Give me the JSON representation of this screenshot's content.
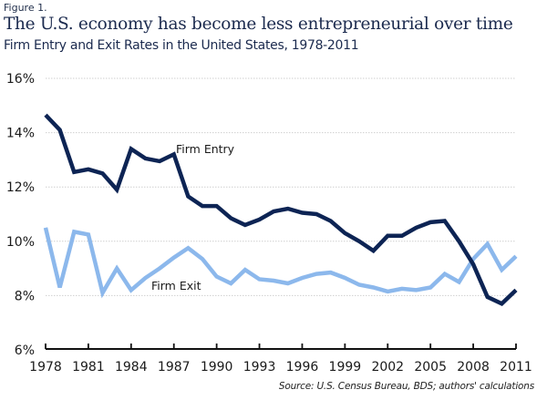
{
  "figure_label": "Figure 1.",
  "title": "The U.S. economy has become less entrepreneurial over time",
  "subtitle": "Firm Entry and Exit Rates in the United States, 1978-2011",
  "source": "Source: U.S. Census Bureau, BDS; authors' calculations",
  "chart_data": {
    "type": "line",
    "title": "The U.S. economy has become less entrepreneurial over time",
    "subtitle": "Firm Entry and Exit Rates in the United States, 1978-2011",
    "xlabel": "",
    "ylabel": "",
    "x": [
      1978,
      1979,
      1980,
      1981,
      1982,
      1983,
      1984,
      1985,
      1986,
      1987,
      1988,
      1989,
      1990,
      1991,
      1992,
      1993,
      1994,
      1995,
      1996,
      1997,
      1998,
      1999,
      2000,
      2001,
      2002,
      2003,
      2004,
      2005,
      2006,
      2007,
      2008,
      2009,
      2010,
      2011
    ],
    "xlim": [
      1978,
      2011
    ],
    "ylim": [
      6,
      16
    ],
    "x_ticks": [
      1978,
      1981,
      1984,
      1987,
      1990,
      1993,
      1996,
      1999,
      2002,
      2005,
      2008,
      2011
    ],
    "x_tick_labels": [
      "1978",
      "1981",
      "1984",
      "1987",
      "1990",
      "1993",
      "1996",
      "1999",
      "2002",
      "2005",
      "2008",
      "2011"
    ],
    "y_ticks": [
      6,
      8,
      10,
      12,
      14,
      16
    ],
    "y_tick_labels": [
      "6%",
      "8%",
      "10%",
      "12%",
      "14%",
      "16%"
    ],
    "grid": "horizontal dotted",
    "legend": "none (inline annotations)",
    "series": [
      {
        "name": "Firm Entry",
        "color": "#0d2454",
        "annotation": "Firm Entry",
        "values": [
          14.65,
          14.1,
          12.55,
          12.65,
          12.5,
          11.9,
          13.4,
          13.05,
          12.95,
          13.2,
          11.65,
          11.3,
          11.3,
          10.85,
          10.6,
          10.8,
          11.1,
          11.2,
          11.05,
          11.0,
          10.75,
          10.3,
          10.0,
          9.65,
          10.2,
          10.2,
          10.5,
          10.7,
          10.75,
          10.0,
          9.15,
          7.95,
          7.7,
          8.2
        ]
      },
      {
        "name": "Firm Exit",
        "color": "#8cb8ec",
        "annotation": "Firm Exit",
        "values": [
          10.5,
          8.3,
          10.35,
          10.25,
          8.1,
          9.0,
          8.2,
          8.65,
          9.0,
          9.4,
          9.75,
          9.35,
          8.7,
          8.45,
          8.95,
          8.6,
          8.55,
          8.45,
          8.65,
          8.8,
          8.85,
          8.65,
          8.4,
          8.3,
          8.15,
          8.25,
          8.2,
          8.3,
          8.8,
          8.5,
          9.35,
          9.9,
          8.95,
          9.45
        ]
      }
    ]
  }
}
